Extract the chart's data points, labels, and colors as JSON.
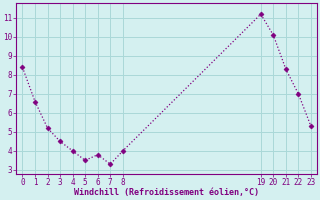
{
  "x": [
    0,
    1,
    2,
    3,
    4,
    5,
    6,
    7,
    8,
    19,
    20,
    21,
    22,
    23
  ],
  "y": [
    8.4,
    6.6,
    5.2,
    4.5,
    4.0,
    3.5,
    3.8,
    3.3,
    4.0,
    11.2,
    10.1,
    8.3,
    7.0,
    5.3
  ],
  "line_color": "#800080",
  "marker": "D",
  "marker_size": 2.5,
  "bg_color": "#d4f0f0",
  "grid_color": "#aad8d8",
  "xlabel": "Windchill (Refroidissement éolien,°C)",
  "xlim": [
    -0.5,
    23.5
  ],
  "ylim": [
    2.8,
    11.8
  ],
  "xticks": [
    0,
    1,
    2,
    3,
    4,
    5,
    6,
    7,
    8,
    19,
    20,
    21,
    22,
    23
  ],
  "yticks": [
    3,
    4,
    5,
    6,
    7,
    8,
    9,
    10,
    11
  ],
  "axis_color": "#800080",
  "tick_color": "#800080",
  "label_color": "#800080",
  "spine_color": "#800080",
  "figsize": [
    3.2,
    2.0
  ],
  "dpi": 100
}
